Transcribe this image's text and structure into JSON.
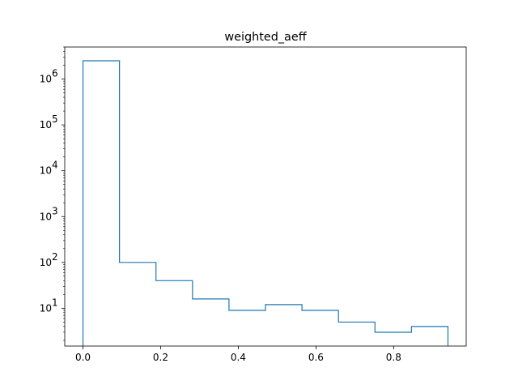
{
  "chart_data": {
    "type": "histogram",
    "title": "weighted_aeff",
    "xlabel": "",
    "ylabel": "",
    "x_scale": "linear",
    "y_scale": "log",
    "xlim": [
      -0.047,
      0.987
    ],
    "ylim": [
      1.5,
      5000000
    ],
    "x_ticks": [
      0.0,
      0.2,
      0.4,
      0.6,
      0.8
    ],
    "x_tick_labels": [
      "0.0",
      "0.2",
      "0.4",
      "0.6",
      "0.8"
    ],
    "y_ticks": [
      10,
      100,
      1000,
      10000,
      100000,
      1000000
    ],
    "y_tick_labels": [
      {
        "base": "10",
        "exp": "1"
      },
      {
        "base": "10",
        "exp": "2"
      },
      {
        "base": "10",
        "exp": "3"
      },
      {
        "base": "10",
        "exp": "4"
      },
      {
        "base": "10",
        "exp": "5"
      },
      {
        "base": "10",
        "exp": "6"
      }
    ],
    "bin_edges": [
      0.0,
      0.094,
      0.188,
      0.282,
      0.376,
      0.47,
      0.564,
      0.658,
      0.752,
      0.846,
      0.94
    ],
    "counts": [
      2500000,
      100,
      40,
      16,
      9,
      12,
      9,
      5,
      3,
      4
    ],
    "histtype": "step",
    "color": "#1f77b4",
    "grid": false,
    "legend": "none"
  }
}
